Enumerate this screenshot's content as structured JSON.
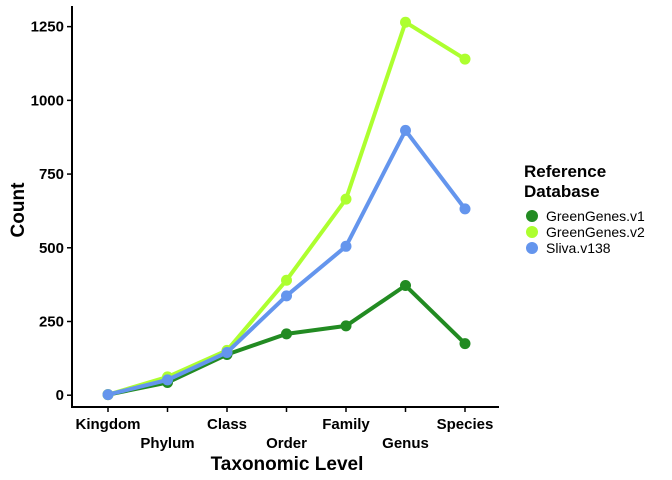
{
  "chart_data": {
    "type": "line",
    "xlabel": "Taxonomic Level",
    "ylabel": "Count",
    "categories": [
      "Kingdom",
      "Phylum",
      "Class",
      "Order",
      "Family",
      "Genus",
      "Species"
    ],
    "ylim": [
      -40,
      1320
    ],
    "yticks": [
      0,
      250,
      500,
      750,
      1000,
      1250
    ],
    "grid": false,
    "legend_position": "right",
    "legend_title": [
      "Reference",
      "Database"
    ],
    "series": [
      {
        "name": "GreenGenes.v1",
        "color": "#228B22",
        "values": [
          2,
          43,
          138,
          208,
          235,
          372,
          175
        ]
      },
      {
        "name": "GreenGenes.v2",
        "color": "#ADFF2F",
        "values": [
          2,
          62,
          152,
          390,
          665,
          1265,
          1140
        ]
      },
      {
        "name": "Sliva.v138",
        "color": "#6495ED",
        "values": [
          2,
          52,
          145,
          337,
          505,
          898,
          632
        ]
      }
    ]
  }
}
